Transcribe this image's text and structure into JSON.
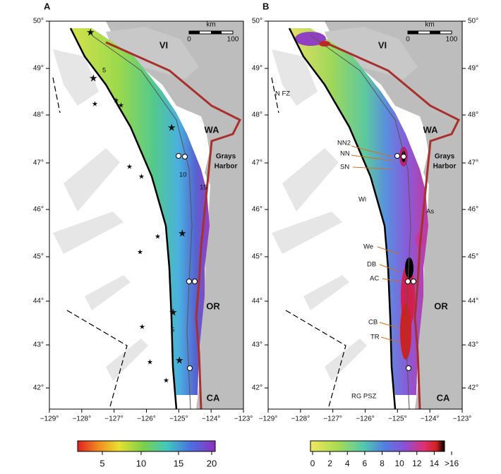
{
  "panels": [
    {
      "label": "A",
      "scale": {
        "unit": "km",
        "ticks": [
          "0",
          "100"
        ]
      },
      "places": {
        "island": "VI",
        "state_wa": "WA",
        "harbor": [
          "Grays",
          "Harbor"
        ],
        "state_or": "OR",
        "state_ca": "CA"
      },
      "contours": [
        "5",
        "10",
        "15",
        "5"
      ],
      "colorbar": [
        "5",
        "10",
        "15",
        "20"
      ]
    },
    {
      "label": "B",
      "scale": {
        "unit": "km",
        "ticks": [
          "0",
          "100"
        ]
      },
      "places": {
        "island": "VI",
        "state_wa": "WA",
        "harbor": [
          "Grays",
          "Harbor"
        ],
        "state_or": "OR",
        "state_ca": "CA"
      },
      "features": [
        "N FZ",
        "NN2",
        "NN",
        "SN",
        "Wi",
        "As",
        "We",
        "DB",
        "AC",
        "CB",
        "TR",
        "RG PSZ"
      ],
      "colorbar": [
        "0",
        "2",
        "4",
        "6",
        "8",
        "10",
        "12",
        "14",
        ">16"
      ]
    }
  ],
  "lat_ticks": [
    "50°",
    "49°",
    "48°",
    "47°",
    "46°",
    "45°",
    "44°",
    "43°",
    "42°"
  ],
  "lon_ticks": [
    "−129°",
    "−128°",
    "−127°",
    "−126°",
    "−125°",
    "−124°",
    "−123°"
  ]
}
